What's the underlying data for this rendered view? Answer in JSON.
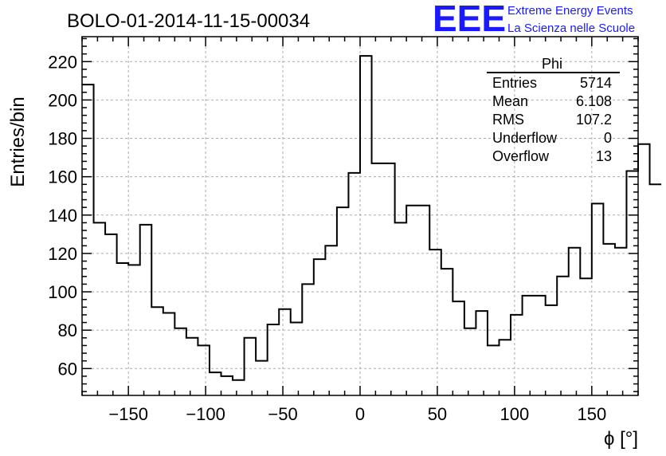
{
  "header": {
    "title": "BOLO-01-2014-11-15-00034",
    "logo_text": "EEE",
    "logo_line1": "Extreme Energy Events",
    "logo_line2": "La Scienza nelle Scuole",
    "logo_color": "#1a1aff"
  },
  "stats_box": {
    "name": "Phi",
    "rows": [
      {
        "label": "Entries",
        "value": "5714"
      },
      {
        "label": "Mean",
        "value": "6.108"
      },
      {
        "label": "RMS",
        "value": "107.2"
      },
      {
        "label": "Underflow",
        "value": "0"
      },
      {
        "label": "Overflow",
        "value": "13"
      }
    ]
  },
  "chart_data": {
    "type": "histogram",
    "title": "BOLO-01-2014-11-15-00034",
    "xlabel": "ϕ [°]",
    "ylabel": "Entries/bin",
    "xlim": [
      -180,
      180
    ],
    "ylim": [
      46,
      233
    ],
    "grid": true,
    "bin_width": 7.5,
    "bin_edges_start": -180,
    "values": [
      208,
      136,
      130,
      115,
      114,
      135,
      92,
      89,
      81,
      76,
      72,
      58,
      56,
      54,
      76,
      64,
      83,
      91,
      84,
      104,
      117,
      124,
      144,
      162,
      223,
      167,
      167,
      136,
      145,
      145,
      122,
      112,
      95,
      81,
      90,
      72,
      75,
      88,
      98,
      98,
      93,
      108,
      123,
      107,
      146,
      125,
      123,
      163,
      177,
      156
    ],
    "x_ticks": [
      -150,
      -100,
      -50,
      0,
      50,
      100,
      150
    ],
    "x_tick_labels": [
      "−150",
      "−100",
      "−50",
      "0",
      "50",
      "100",
      "150"
    ],
    "y_ticks": [
      60,
      80,
      100,
      120,
      140,
      160,
      180,
      200,
      220
    ],
    "y_tick_labels": [
      "60",
      "80",
      "100",
      "120",
      "140",
      "160",
      "180",
      "200",
      "220"
    ],
    "line_color": "#000000",
    "grid_color": "#aaaaaa"
  }
}
